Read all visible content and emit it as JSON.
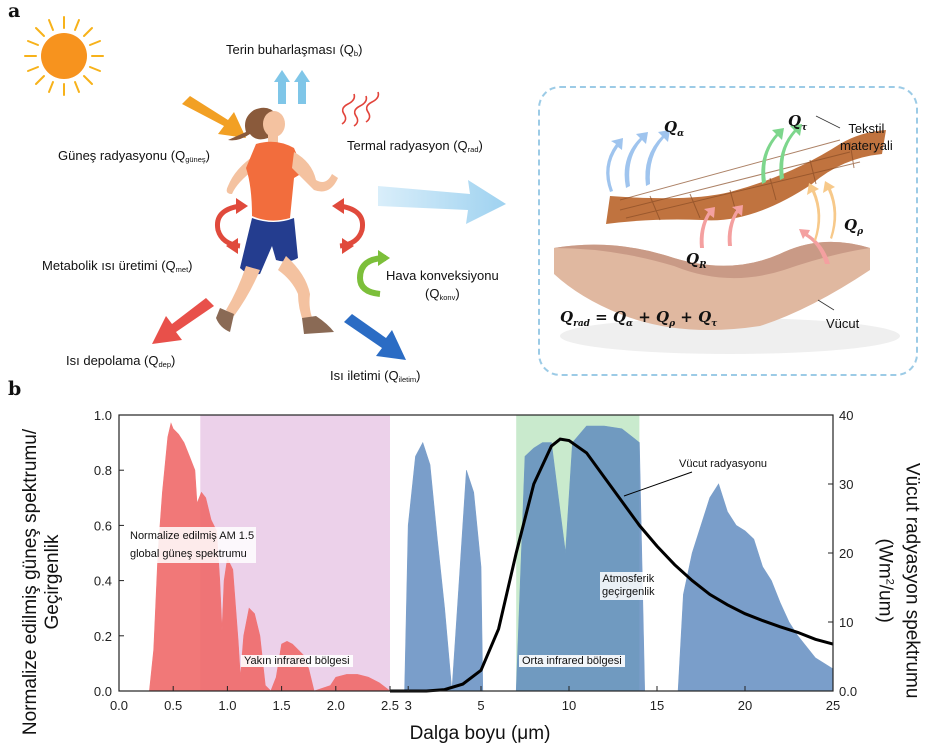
{
  "panel_a": {
    "letter": "a",
    "labels": {
      "evaporation": {
        "text": "Terin buharlaşması (Q",
        "sub": "b",
        "close": ")"
      },
      "solar": {
        "text": "Güneş radyasyonu (Q",
        "sub": "güneş",
        "close": ")"
      },
      "thermal": {
        "text": "Termal radyasyon (Q",
        "sub": "rad",
        "close": ")"
      },
      "metabolic": {
        "text": "Metabolik ısı üretimi (Q",
        "sub": "met",
        "close": ")"
      },
      "convection": {
        "text": "Hava konveksiyonu",
        "line2": "(Q",
        "sub": "konv",
        "close": ")"
      },
      "storage": {
        "text": "Isı depolama (Q",
        "sub": "dep",
        "close": ")"
      },
      "conduction": {
        "text": "Isı iletimi (Q",
        "sub": "iletim",
        "close": ")"
      }
    },
    "inset": {
      "textile_line1": "Tekstil",
      "textile_line2": "materyali",
      "body": "Vücut",
      "q_alpha": "Q",
      "q_alpha_sub": "α",
      "q_tau": "Q",
      "q_tau_sub": "τ",
      "q_rho": "Q",
      "q_rho_sub": "ρ",
      "q_r": "Q",
      "q_r_sub": "R",
      "equation": {
        "lhs": "Q",
        "lhs_sub": "rad",
        "eq": " = ",
        "t1": "Q",
        "t1_sub": "α",
        "plus1": " + ",
        "t2": "Q",
        "t2_sub": "ρ",
        "plus2": " + ",
        "t3": "Q",
        "t3_sub": "τ"
      }
    }
  },
  "panel_b": {
    "letter": "b",
    "colors": {
      "solar": "#f06a6a",
      "atm": "#5a87bd",
      "nir_band": "#e9c9e6",
      "mir_band": "#bfe6c4",
      "body_curve": "#000000"
    },
    "annotations": {
      "solar_line1": "Normalize edilmiş AM 1.5",
      "solar_line2": "global güneş spektrumu",
      "nir": "Yakın infrared bölgesi",
      "mir": "Orta infrared bölgesi",
      "atm_line1": "Atmosferik",
      "atm_line2": "geçirgenlik",
      "body": "Vücut radyasyonu"
    }
  },
  "chart_data": {
    "type": "area",
    "xlabel": "Dalga boyu (μm)",
    "ylabel_line1": "Normalize edilmiş güneş spektrumu/",
    "ylabel_line2": "Geçirgenlik",
    "y2label_line1": "Vücut radyasyon spektrumu",
    "y2label_line2_a": "(Wm",
    "y2label_line2_sup": "2",
    "y2label_line2_b": "/um)",
    "x_ticks": [
      "0.0",
      "0.5",
      "1.0",
      "1.5",
      "2.0",
      "2.5",
      "3",
      "5",
      "10",
      "15",
      "20",
      "25"
    ],
    "y_ticks": [
      "0.0",
      "0.2",
      "0.4",
      "0.6",
      "0.8",
      "1.0"
    ],
    "y2_ticks": [
      "0.0",
      "10",
      "20",
      "30",
      "40"
    ],
    "ylim": [
      0,
      1.0
    ],
    "y2lim": [
      0,
      40
    ],
    "xlim_segments": [
      {
        "from": 0,
        "to": 2.5,
        "scale": "linear"
      },
      {
        "from": 2.5,
        "to": 25,
        "scale": "linear-compressed"
      }
    ],
    "bands": [
      {
        "name": "Yakın infrared bölgesi",
        "from": 0.75,
        "to": 2.5
      },
      {
        "name": "Orta infrared bölgesi",
        "from": 7,
        "to": 14
      }
    ],
    "series": [
      {
        "name": "Normalize edilmiş AM 1.5 global güneş spektrumu",
        "axis": "left",
        "points": [
          [
            0.28,
            0.0
          ],
          [
            0.32,
            0.15
          ],
          [
            0.36,
            0.5
          ],
          [
            0.4,
            0.72
          ],
          [
            0.45,
            0.92
          ],
          [
            0.48,
            0.97
          ],
          [
            0.5,
            0.95
          ],
          [
            0.55,
            0.93
          ],
          [
            0.6,
            0.9
          ],
          [
            0.65,
            0.85
          ],
          [
            0.7,
            0.8
          ],
          [
            0.72,
            0.68
          ],
          [
            0.76,
            0.72
          ],
          [
            0.8,
            0.7
          ],
          [
            0.85,
            0.62
          ],
          [
            0.9,
            0.58
          ],
          [
            0.93,
            0.4
          ],
          [
            0.95,
            0.22
          ],
          [
            0.97,
            0.4
          ],
          [
            1.0,
            0.48
          ],
          [
            1.05,
            0.44
          ],
          [
            1.1,
            0.18
          ],
          [
            1.12,
            0.05
          ],
          [
            1.15,
            0.2
          ],
          [
            1.2,
            0.3
          ],
          [
            1.25,
            0.28
          ],
          [
            1.3,
            0.2
          ],
          [
            1.35,
            0.02
          ],
          [
            1.4,
            0.0
          ],
          [
            1.45,
            0.05
          ],
          [
            1.5,
            0.17
          ],
          [
            1.55,
            0.18
          ],
          [
            1.6,
            0.17
          ],
          [
            1.65,
            0.15
          ],
          [
            1.7,
            0.13
          ],
          [
            1.75,
            0.08
          ],
          [
            1.8,
            0.0
          ],
          [
            1.95,
            0.02
          ],
          [
            2.0,
            0.05
          ],
          [
            2.1,
            0.06
          ],
          [
            2.2,
            0.06
          ],
          [
            2.3,
            0.05
          ],
          [
            2.4,
            0.03
          ],
          [
            2.5,
            0.0
          ]
        ]
      },
      {
        "name": "Atmosferik geçirgenlik",
        "axis": "left",
        "points": [
          [
            2.9,
            0.0
          ],
          [
            3.0,
            0.6
          ],
          [
            3.2,
            0.85
          ],
          [
            3.4,
            0.9
          ],
          [
            3.6,
            0.82
          ],
          [
            3.8,
            0.55
          ],
          [
            4.0,
            0.3
          ],
          [
            4.2,
            0.0
          ],
          [
            4.4,
            0.4
          ],
          [
            4.6,
            0.8
          ],
          [
            4.8,
            0.72
          ],
          [
            5.0,
            0.45
          ],
          [
            5.1,
            0.0
          ],
          [
            7.0,
            0.0
          ],
          [
            7.5,
            0.85
          ],
          [
            8.0,
            0.88
          ],
          [
            8.5,
            0.9
          ],
          [
            9.0,
            0.9
          ],
          [
            9.4,
            0.7
          ],
          [
            9.8,
            0.5
          ],
          [
            10.2,
            0.9
          ],
          [
            11,
            0.96
          ],
          [
            12,
            0.96
          ],
          [
            13,
            0.95
          ],
          [
            14,
            0.9
          ],
          [
            14.3,
            0.0
          ],
          [
            16.2,
            0.0
          ],
          [
            16.5,
            0.35
          ],
          [
            17,
            0.5
          ],
          [
            17.5,
            0.6
          ],
          [
            18,
            0.7
          ],
          [
            18.5,
            0.75
          ],
          [
            19,
            0.65
          ],
          [
            19.5,
            0.6
          ],
          [
            20,
            0.58
          ],
          [
            20.5,
            0.55
          ],
          [
            21,
            0.45
          ],
          [
            21.5,
            0.4
          ],
          [
            22,
            0.32
          ],
          [
            22.5,
            0.25
          ],
          [
            23,
            0.2
          ],
          [
            24,
            0.12
          ],
          [
            25,
            0.08
          ]
        ]
      },
      {
        "name": "Vücut radyasyonu",
        "axis": "right",
        "points": [
          [
            3.5,
            0.0
          ],
          [
            4.0,
            0.2
          ],
          [
            4.5,
            1.0
          ],
          [
            5.0,
            3.0
          ],
          [
            6.0,
            9.0
          ],
          [
            7.0,
            20.0
          ],
          [
            8.0,
            30.0
          ],
          [
            9.0,
            35.5
          ],
          [
            9.5,
            36.5
          ],
          [
            10.0,
            36.3
          ],
          [
            11,
            34.5
          ],
          [
            12,
            31.0
          ],
          [
            13,
            27.5
          ],
          [
            14,
            24.0
          ],
          [
            15,
            21.0
          ],
          [
            16,
            18.3
          ],
          [
            17,
            16.0
          ],
          [
            18,
            14.0
          ],
          [
            19,
            12.5
          ],
          [
            20,
            11.2
          ],
          [
            21,
            10.2
          ],
          [
            22,
            9.3
          ],
          [
            23,
            8.5
          ],
          [
            24,
            7.5
          ],
          [
            25,
            6.8
          ]
        ]
      }
    ]
  }
}
